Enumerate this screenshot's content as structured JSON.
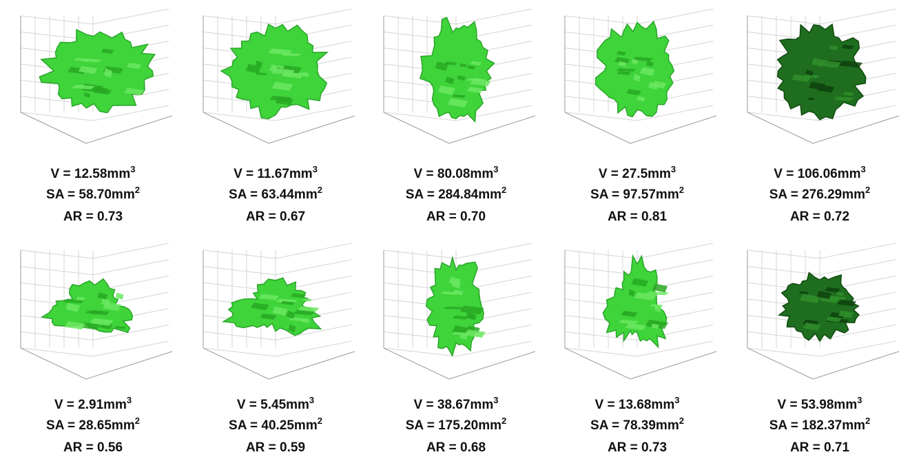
{
  "panels": [
    {
      "lines": [
        {
          "text": "V = 12.58mm",
          "sup": "3"
        },
        {
          "text": "SA = 58.70mm",
          "sup": "2"
        },
        {
          "text": "AR = 0.73"
        }
      ]
    },
    {
      "lines": [
        {
          "text": "V = 11.67mm",
          "sup": "3"
        },
        {
          "text": "SA = 63.44mm",
          "sup": "2"
        },
        {
          "text": "AR = 0.67"
        }
      ]
    },
    {
      "lines": [
        {
          "text": "V = 80.08mm",
          "sup": "3"
        },
        {
          "text": "SA = 284.84mm",
          "sup": "2"
        },
        {
          "text": "AR = 0.70"
        }
      ]
    },
    {
      "lines": [
        {
          "text": "V = 27.5mm",
          "sup": "3"
        },
        {
          "text": "SA = 97.57mm",
          "sup": "2"
        },
        {
          "text": "AR = 0.81"
        }
      ]
    },
    {
      "lines": [
        {
          "text": "V = 106.06mm",
          "sup": "3"
        },
        {
          "text": "SA = 276.29mm",
          "sup": "2"
        },
        {
          "text": "AR = 0.72"
        }
      ]
    },
    {
      "lines": [
        {
          "text": "V = 2.91mm",
          "sup": "3"
        },
        {
          "text": "SA = 28.65mm",
          "sup": "2"
        },
        {
          "text": "AR = 0.56"
        }
      ]
    },
    {
      "lines": [
        {
          "text": "V = 5.45mm",
          "sup": "3"
        },
        {
          "text": "SA = 40.25mm",
          "sup": "2"
        },
        {
          "text": "AR = 0.59"
        }
      ]
    },
    {
      "lines": [
        {
          "text": "V = 38.67mm",
          "sup": "3"
        },
        {
          "text": "SA = 175.20mm",
          "sup": "2"
        },
        {
          "text": "AR = 0.68"
        }
      ]
    },
    {
      "lines": [
        {
          "text": "V = 13.68mm",
          "sup": "3"
        },
        {
          "text": "SA = 78.39mm",
          "sup": "2"
        },
        {
          "text": "AR = 0.73"
        }
      ]
    },
    {
      "lines": [
        {
          "text": "V = 53.98mm",
          "sup": "3"
        },
        {
          "text": "SA = 182.37mm",
          "sup": "2"
        },
        {
          "text": "AR = 0.71"
        }
      ]
    }
  ]
}
